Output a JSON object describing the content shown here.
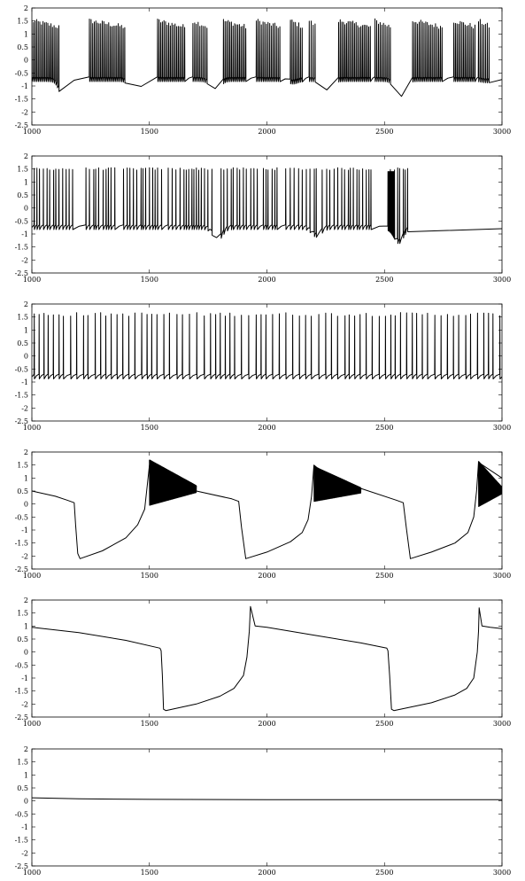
{
  "chart_data": [
    {
      "type": "line",
      "panel": 1,
      "xlim": [
        1000,
        3000
      ],
      "ylim": [
        -2.5,
        2
      ],
      "xticks": [
        1000,
        1500,
        2000,
        2500,
        3000
      ],
      "yticks": [
        2,
        1.5,
        1,
        0.5,
        0,
        -0.5,
        -1,
        -1.5,
        -2,
        -2.5
      ],
      "xlabel": "",
      "ylabel": "",
      "title": "",
      "grid": false,
      "legend": "none",
      "series": [
        {
          "name": "",
          "color": "#000000",
          "x": [],
          "y": []
        }
      ],
      "trace_pattern": {
        "mode": "bursting",
        "resting": -0.75,
        "spike_peak": 1.5,
        "bursts": [
          [
            1000,
            1115
          ],
          [
            1245,
            1395
          ],
          [
            1535,
            1650
          ],
          [
            1685,
            1745
          ],
          [
            1815,
            1910
          ],
          [
            1955,
            2055
          ],
          [
            2100,
            2150
          ],
          [
            2180,
            2205
          ],
          [
            2305,
            2440
          ],
          [
            2460,
            2525
          ],
          [
            2620,
            2745
          ],
          [
            2795,
            2885
          ],
          [
            2900,
            2945
          ]
        ],
        "dips": [
          [
            1138,
            -1.5
          ],
          [
            1440,
            -1.45
          ],
          [
            1780,
            -1.15
          ],
          [
            2110,
            -0.85
          ],
          [
            2255,
            -1.2
          ],
          [
            2565,
            -1.5
          ],
          [
            2935,
            -0.8
          ]
        ]
      }
    },
    {
      "type": "line",
      "panel": 2,
      "xlim": [
        1000,
        3000
      ],
      "ylim": [
        -2.5,
        2
      ],
      "xticks": [
        1000,
        1500,
        2000,
        2500,
        3000
      ],
      "yticks": [
        2,
        1.5,
        1,
        0.5,
        0,
        -0.5,
        -1,
        -1.5,
        -2,
        -2.5
      ],
      "xlabel": "",
      "ylabel": "",
      "title": "",
      "grid": false,
      "legend": "none",
      "series": [
        {
          "name": "",
          "color": "#000000",
          "x": [],
          "y": []
        }
      ],
      "trace_pattern": {
        "mode": "spiking",
        "resting": -0.75,
        "spike_peak": 1.5,
        "mean_interval": 13,
        "bursts": [
          [
            1010,
            1190
          ],
          [
            1230,
            1370
          ],
          [
            1390,
            1560
          ],
          [
            1580,
            1690
          ],
          [
            1700,
            1770
          ],
          [
            1805,
            1960
          ],
          [
            1985,
            2060
          ],
          [
            2080,
            2210
          ],
          [
            2235,
            2445
          ],
          [
            2525,
            2600
          ]
        ],
        "dips": [
          [
            1790,
            -1.2
          ],
          [
            2210,
            -1.05
          ],
          [
            2560,
            -1.3
          ],
          [
            2975,
            -0.85
          ]
        ],
        "dense": [
          [
            2515,
            2540
          ]
        ]
      }
    },
    {
      "type": "line",
      "panel": 3,
      "xlim": [
        1000,
        3000
      ],
      "ylim": [
        -2.5,
        2
      ],
      "xticks": [
        1000,
        1500,
        2000,
        2500,
        3000
      ],
      "yticks": [
        2,
        1.5,
        1,
        0.5,
        0,
        -0.5,
        -1,
        -1.5,
        -2,
        -2.5
      ],
      "xlabel": "",
      "ylabel": "",
      "title": "",
      "grid": false,
      "legend": "none",
      "series": [
        {
          "name": "",
          "color": "#000000",
          "x": [],
          "y": []
        }
      ],
      "trace_pattern": {
        "mode": "tonic",
        "resting": -0.8,
        "spike_peak": 1.6,
        "mean_interval": 25
      }
    },
    {
      "type": "line",
      "panel": 4,
      "xlim": [
        1000,
        3000
      ],
      "ylim": [
        -2.5,
        2
      ],
      "xticks": [
        1000,
        1500,
        2000,
        2500,
        3000
      ],
      "yticks": [
        2,
        1.5,
        1,
        0.5,
        0,
        -0.5,
        -1,
        -1.5,
        -2,
        -2.5
      ],
      "xlabel": "",
      "ylabel": "",
      "title": "",
      "grid": false,
      "legend": "none",
      "series": [
        {
          "name": "",
          "color": "#000000",
          "x": [
            1000,
            1100,
            1150,
            1180,
            1186,
            1195,
            1205,
            1300,
            1400,
            1450,
            1480,
            1492,
            1500,
            1580,
            1660,
            1700,
            1850,
            1880,
            1892,
            1910,
            2000,
            2100,
            2150,
            2175,
            2190,
            2200,
            2280,
            2360,
            2400,
            2550,
            2580,
            2593,
            2610,
            2700,
            2800,
            2855,
            2880,
            2892,
            2900,
            3000
          ],
          "y": [
            0.5,
            0.3,
            0.15,
            0.05,
            -0.8,
            -1.9,
            -2.1,
            -1.8,
            -1.3,
            -0.8,
            -0.2,
            0.8,
            1.5,
            0.9,
            0.7,
            0.5,
            0.2,
            0.1,
            -0.9,
            -2.1,
            -1.85,
            -1.45,
            -1.1,
            -0.6,
            0.3,
            1.5,
            0.9,
            0.7,
            0.6,
            0.15,
            0.05,
            -0.9,
            -2.1,
            -1.85,
            -1.5,
            -1.1,
            -0.5,
            0.5,
            1.6,
            1.0
          ]
        }
      ],
      "oscillation_bands": [
        [
          1500,
          1700,
          1.7,
          -0.05
        ],
        [
          2200,
          2400,
          1.45,
          0.1
        ],
        [
          2900,
          3000,
          1.65,
          -0.1
        ]
      ]
    },
    {
      "type": "line",
      "panel": 5,
      "xlim": [
        1000,
        3000
      ],
      "ylim": [
        -2.5,
        2
      ],
      "xticks": [
        1000,
        1500,
        2000,
        2500,
        3000
      ],
      "yticks": [
        2,
        1.5,
        1,
        0.5,
        0,
        -0.5,
        -1,
        -1.5,
        -2,
        -2.5
      ],
      "xlabel": "",
      "ylabel": "",
      "title": "",
      "grid": false,
      "legend": "none",
      "series": [
        {
          "name": "",
          "color": "#000000",
          "x": [
            1000,
            1200,
            1400,
            1545,
            1550,
            1555,
            1560,
            1570,
            1700,
            1800,
            1860,
            1900,
            1915,
            1925,
            1930,
            1950,
            2000,
            2200,
            2400,
            2510,
            2515,
            2522,
            2530,
            2540,
            2700,
            2800,
            2850,
            2880,
            2895,
            2900,
            2903,
            2915,
            2950,
            3000
          ],
          "y": [
            0.95,
            0.75,
            0.45,
            0.15,
            0.05,
            -0.9,
            -2.2,
            -2.25,
            -2.0,
            -1.7,
            -1.4,
            -0.9,
            -0.2,
            0.8,
            1.75,
            1.0,
            0.95,
            0.65,
            0.35,
            0.15,
            0.05,
            -0.9,
            -2.2,
            -2.25,
            -1.95,
            -1.65,
            -1.4,
            -1.0,
            0.0,
            0.8,
            1.7,
            1.0,
            0.95,
            0.9
          ]
        }
      ]
    },
    {
      "type": "line",
      "panel": 6,
      "xlim": [
        1000,
        3000
      ],
      "ylim": [
        -2.5,
        2
      ],
      "xticks": [
        1000,
        1500,
        2000,
        2500,
        3000
      ],
      "yticks": [
        2,
        1.5,
        1,
        0.5,
        0,
        -0.5,
        -1,
        -1.5,
        -2,
        -2.5
      ],
      "xlabel": "",
      "ylabel": "",
      "title": "",
      "grid": false,
      "legend": "none",
      "series": [
        {
          "name": "",
          "color": "#000000",
          "x": [
            1000,
            1200,
            1500,
            2000,
            3000
          ],
          "y": [
            0.12,
            0.08,
            0.06,
            0.05,
            0.05
          ]
        }
      ]
    }
  ]
}
